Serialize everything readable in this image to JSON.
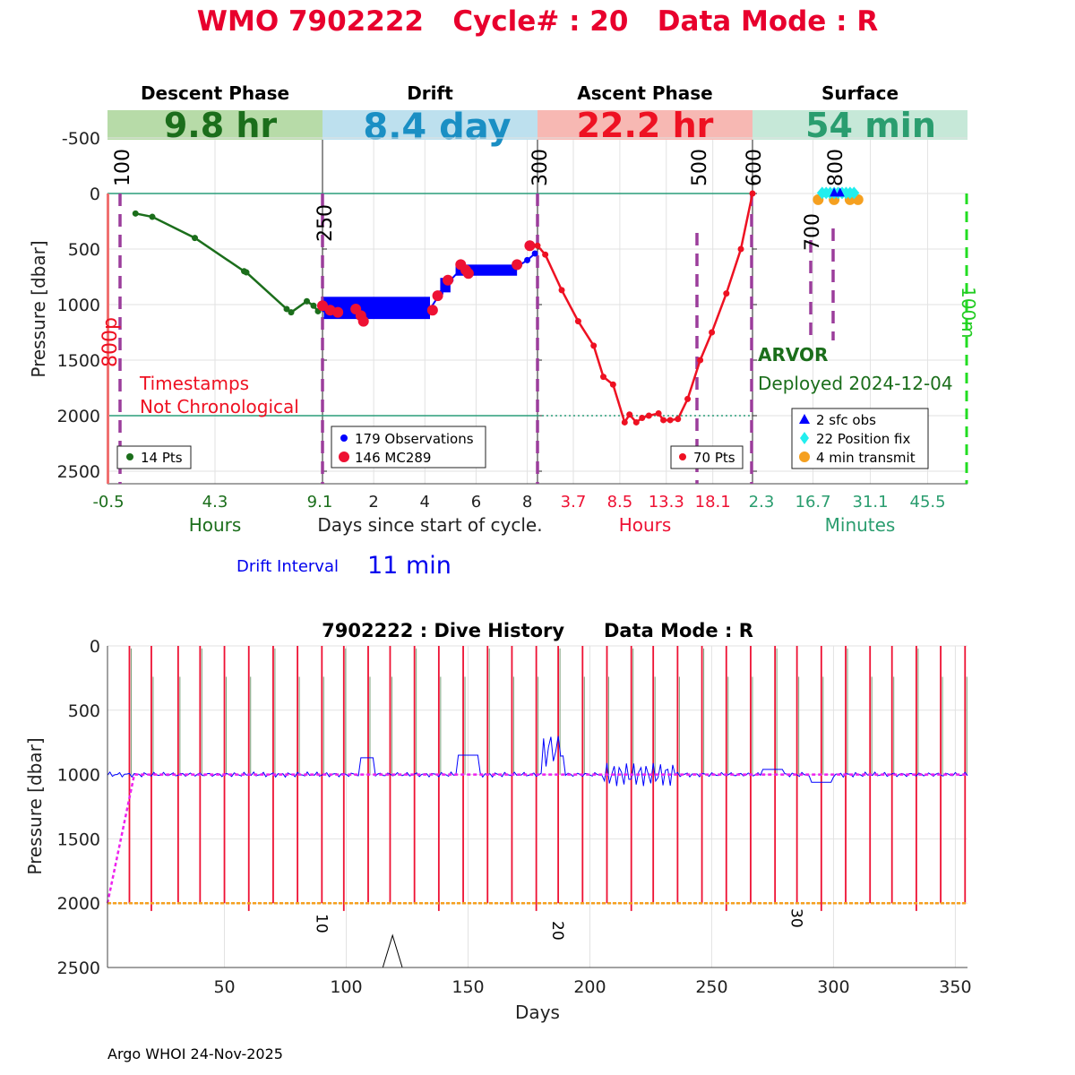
{
  "title": "WMO 7902222   Cycle# : 20   Data Mode : R",
  "colors": {
    "title": "#e8002d",
    "descent": "#1b6e1b",
    "descent_band": "#b7dba8",
    "drift_band": "#bde0ee",
    "drift_band_text": "#1a8fc4",
    "ascent": "#ee1122",
    "ascent_band": "#f7b8b3",
    "surface": "#2a9d6f",
    "surface_band": "#c6e8d8",
    "obs_blue": "#0000ff",
    "mc289_red": "#ee1133",
    "vline_purple": "#9b3d9b",
    "ref_line": "#2a9d7a",
    "green_dash": "#22dd22",
    "pink_line": "#f07070",
    "magenta": "#ee22ee",
    "orange": "#f5a020",
    "cyan": "#22eeee"
  },
  "top": {
    "phases": [
      {
        "name": "Descent Phase",
        "duration": "9.8 hr"
      },
      {
        "name": "Drift",
        "duration": "8.4 day"
      },
      {
        "name": "Ascent Phase",
        "duration": "22.2 hr"
      },
      {
        "name": "Surface",
        "duration": "54 min"
      }
    ],
    "ylabel": "Pressure [dbar]",
    "yticks": [
      "-500",
      "0",
      "500",
      "1000",
      "1500",
      "2000",
      "2500"
    ],
    "ylim": [
      -750,
      2600
    ],
    "xticks_descent": [
      "-0.5",
      "4.3",
      "9.1"
    ],
    "xticks_drift": [
      "2",
      "4",
      "6",
      "8"
    ],
    "xticks_ascent": [
      "3.7",
      "8.5",
      "13.3",
      "18.1"
    ],
    "xticks_surface": [
      "2.3",
      "16.7",
      "31.1",
      "45.5"
    ],
    "xlabel_descent": "Hours",
    "xlabel_drift": "Days since start of cycle.",
    "xlabel_ascent": "Hours",
    "xlabel_surface": "Minutes",
    "vline_labels": [
      "100",
      "250",
      "300",
      "500",
      "600",
      "700",
      "800"
    ],
    "left_label": "800p",
    "right_label": "100m",
    "warning_line1": "Timestamps",
    "warning_line2": "Not Chronological",
    "float_type": "ARVOR",
    "deployed": "Deployed 2024-12-04",
    "legend_descent": "14 Pts",
    "legend_drift_obs": "179 Observations",
    "legend_drift_mc": "146 MC289",
    "legend_ascent": "70 Pts",
    "legend_surface": [
      "2 sfc obs",
      "22 Position fix",
      "4 min transmit"
    ],
    "drift_interval_label": "Drift Interval",
    "drift_interval_value": "11 min"
  },
  "chart_data": [
    {
      "type": "line",
      "title": "Descent Phase",
      "xlabel": "Hours",
      "ylabel": "Pressure [dbar]",
      "series": [
        {
          "name": "14 Pts",
          "x": [
            0.75,
            1.5,
            3.4,
            5.6,
            5.7,
            7.5,
            7.7,
            8.4,
            8.7,
            8.9
          ],
          "y": [
            180,
            210,
            400,
            700,
            710,
            1040,
            1070,
            970,
            1010,
            1060
          ]
        }
      ]
    },
    {
      "type": "scatter",
      "title": "Drift",
      "xlabel": "Days since start of cycle.",
      "series": [
        {
          "name": "179 Observations",
          "x": [
            0.05,
            1.5,
            3.0,
            4.2,
            4.6,
            5.0,
            5.5,
            6.0,
            7.0,
            7.6,
            8.0,
            8.3
          ],
          "y": [
            1040,
            1040,
            1040,
            1040,
            900,
            780,
            660,
            680,
            680,
            660,
            600,
            540
          ]
        },
        {
          "name": "146 MC289",
          "x": [
            0.0,
            0.3,
            0.6,
            1.3,
            1.5,
            1.6,
            4.3,
            4.5,
            4.9,
            5.4,
            5.6,
            5.7,
            7.6,
            8.1
          ],
          "y": [
            1010,
            1050,
            1070,
            1040,
            1100,
            1150,
            1050,
            920,
            780,
            640,
            690,
            720,
            640,
            470
          ]
        }
      ]
    },
    {
      "type": "line",
      "title": "Ascent Phase",
      "xlabel": "Hours",
      "series": [
        {
          "name": "70 Pts",
          "x": [
            0.0,
            0.8,
            2.5,
            4.2,
            5.8,
            6.8,
            7.8,
            9.0,
            9.5,
            10.2,
            10.8,
            11.5,
            12.5,
            13.0,
            13.7,
            14.5,
            15.5,
            16.8,
            18.0,
            19.5,
            21.0,
            22.2
          ],
          "y": [
            470,
            550,
            870,
            1150,
            1370,
            1650,
            1720,
            2060,
            1990,
            2060,
            2020,
            2000,
            1980,
            2040,
            2040,
            2030,
            1850,
            1500,
            1250,
            900,
            500,
            0
          ]
        }
      ]
    },
    {
      "type": "scatter",
      "title": "Surface",
      "xlabel": "Minutes",
      "series": [
        {
          "name": "2 sfc obs",
          "x": [
            22.0,
            23.5
          ],
          "y": [
            -5,
            -5
          ]
        },
        {
          "name": "22 Position fix",
          "x": [
            19,
            20,
            21,
            22,
            23,
            24,
            25,
            26,
            27
          ],
          "y": [
            -5,
            -5,
            -5,
            -5,
            -5,
            -5,
            -5,
            -5,
            -5
          ]
        },
        {
          "name": "4 min transmit",
          "x": [
            18,
            22,
            26,
            28
          ],
          "y": [
            55,
            55,
            55,
            55
          ]
        }
      ]
    },
    {
      "type": "line",
      "title": "7902222 : Dive History      Data Mode : R",
      "xlabel": "Days",
      "ylabel": "Pressure [dbar]",
      "xticks": [
        "50",
        "100",
        "150",
        "200",
        "250",
        "300",
        "350"
      ],
      "yticks": [
        "0",
        "500",
        "1000",
        "1500",
        "2000",
        "2500"
      ],
      "xlim": [
        2,
        355
      ],
      "ylim": [
        0,
        2500
      ],
      "cycle_labels": [
        "10",
        "20",
        "30"
      ],
      "parking_depth": 1000,
      "profile_depth": 2000,
      "profile_days": [
        11,
        20,
        31,
        40,
        50,
        60,
        70,
        80,
        90,
        99,
        109,
        118,
        128,
        138,
        148,
        158,
        168,
        178,
        187,
        197,
        207,
        217,
        226,
        236,
        246,
        256,
        266,
        276,
        285,
        295,
        305,
        315,
        324,
        334,
        344,
        354
      ]
    }
  ],
  "bottom": {
    "title": "7902222 : Dive History      Data Mode : R"
  },
  "footer": "Argo WHOI 24-Nov-2025"
}
